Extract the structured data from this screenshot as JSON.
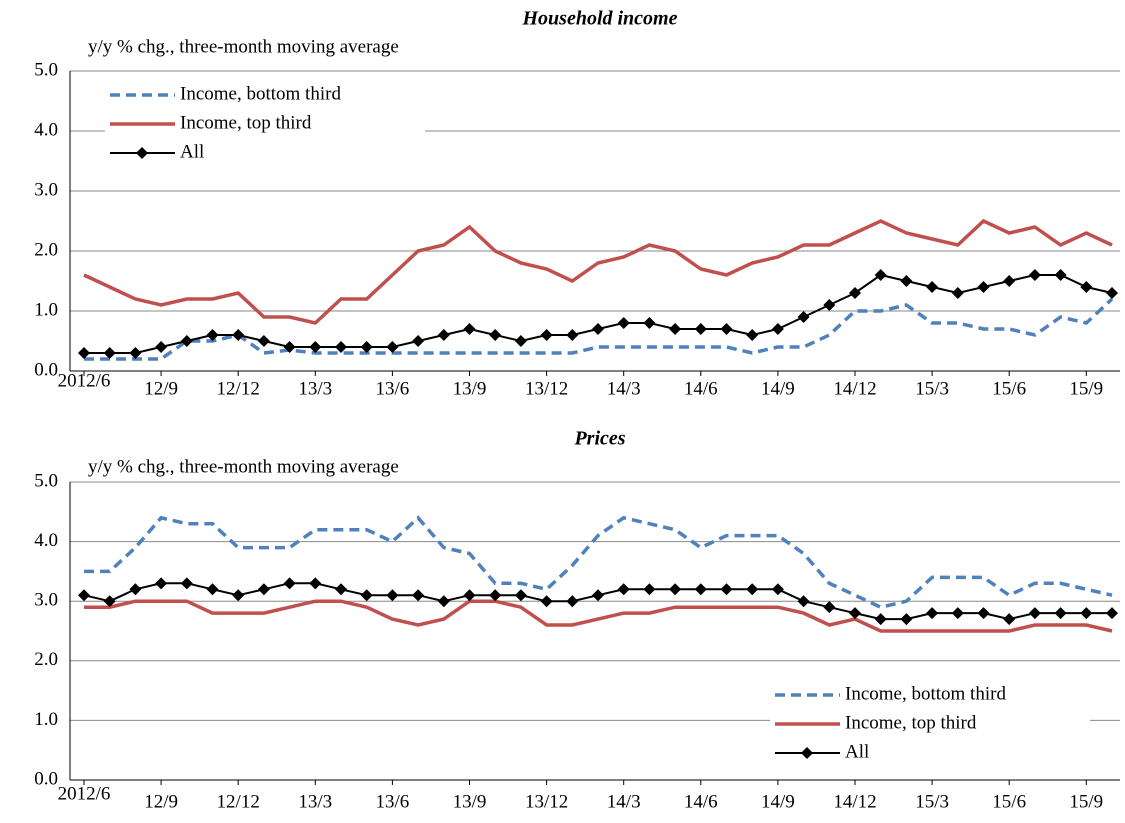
{
  "chart_data": [
    {
      "type": "line",
      "title": "Household income",
      "subtitle": "y/y % chg., three-month moving average",
      "categories": [
        "2012/6",
        null,
        null,
        "12/9",
        null,
        null,
        "12/12",
        null,
        null,
        "13/3",
        null,
        null,
        "13/6",
        null,
        null,
        "13/9",
        null,
        null,
        "13/12",
        null,
        null,
        "14/3",
        null,
        null,
        "14/6",
        null,
        null,
        "14/9",
        null,
        null,
        "14/12",
        null,
        null,
        "15/3",
        null,
        null,
        "15/6",
        null,
        null,
        "15/9",
        null
      ],
      "series": [
        {
          "name": "Income, bottom third",
          "color": "#4f81bd",
          "dash": true,
          "values": [
            0.2,
            0.2,
            0.2,
            0.2,
            0.5,
            0.5,
            0.6,
            0.3,
            0.35,
            0.3,
            0.3,
            0.3,
            0.3,
            0.3,
            0.3,
            0.3,
            0.3,
            0.3,
            0.3,
            0.3,
            0.4,
            0.4,
            0.4,
            0.4,
            0.4,
            0.4,
            0.3,
            0.4,
            0.4,
            0.6,
            1.0,
            1.0,
            1.1,
            0.8,
            0.8,
            0.7,
            0.7,
            0.6,
            0.9,
            0.8,
            1.2
          ]
        },
        {
          "name": "Income, top third",
          "color": "#c0504d",
          "values": [
            1.6,
            1.4,
            1.2,
            1.1,
            1.2,
            1.2,
            1.3,
            0.9,
            0.9,
            0.8,
            1.2,
            1.2,
            1.6,
            2.0,
            2.1,
            2.4,
            2.0,
            1.8,
            1.7,
            1.5,
            1.8,
            1.9,
            2.1,
            2.0,
            1.7,
            1.6,
            1.8,
            1.9,
            2.1,
            2.1,
            2.3,
            2.5,
            2.3,
            2.2,
            2.1,
            2.5,
            2.3,
            2.4,
            2.1,
            2.3,
            2.1
          ]
        },
        {
          "name": "All",
          "color": "#000000",
          "marker": "diamond",
          "values": [
            0.3,
            0.3,
            0.3,
            0.4,
            0.5,
            0.6,
            0.6,
            0.5,
            0.4,
            0.4,
            0.4,
            0.4,
            0.4,
            0.5,
            0.6,
            0.7,
            0.6,
            0.5,
            0.6,
            0.6,
            0.7,
            0.8,
            0.8,
            0.7,
            0.7,
            0.7,
            0.6,
            0.7,
            0.9,
            1.1,
            1.3,
            1.6,
            1.5,
            1.4,
            1.3,
            1.4,
            1.5,
            1.6,
            1.6,
            1.4,
            1.3
          ]
        }
      ],
      "ylim": [
        0,
        5
      ],
      "yticks": [
        {
          "value": 0,
          "label": "0.0"
        },
        {
          "value": 1,
          "label": "1.0"
        },
        {
          "value": 2,
          "label": "2.0"
        },
        {
          "value": 3,
          "label": "3.0"
        },
        {
          "value": 4,
          "label": "4.0"
        },
        {
          "value": 5,
          "label": "5.0"
        }
      ],
      "grid": true,
      "legend": "upper left"
    },
    {
      "type": "line",
      "title": "Prices",
      "subtitle": "y/y % chg., three-month moving average",
      "categories": [
        "2012/6",
        null,
        null,
        "12/9",
        null,
        null,
        "12/12",
        null,
        null,
        "13/3",
        null,
        null,
        "13/6",
        null,
        null,
        "13/9",
        null,
        null,
        "13/12",
        null,
        null,
        "14/3",
        null,
        null,
        "14/6",
        null,
        null,
        "14/9",
        null,
        null,
        "14/12",
        null,
        null,
        "15/3",
        null,
        null,
        "15/6",
        null,
        null,
        "15/9",
        null
      ],
      "series": [
        {
          "name": "Income, bottom third",
          "color": "#4f81bd",
          "dash": true,
          "values": [
            3.5,
            3.5,
            3.9,
            4.4,
            4.3,
            4.3,
            3.9,
            3.9,
            3.9,
            4.2,
            4.2,
            4.2,
            4.0,
            4.4,
            3.9,
            3.8,
            3.3,
            3.3,
            3.2,
            3.6,
            4.1,
            4.4,
            4.3,
            4.2,
            3.9,
            4.1,
            4.1,
            4.1,
            3.8,
            3.3,
            3.1,
            2.9,
            3.0,
            3.4,
            3.4,
            3.4,
            3.1,
            3.3,
            3.3,
            3.2,
            3.1
          ]
        },
        {
          "name": "Income, top third",
          "color": "#c0504d",
          "values": [
            2.9,
            2.9,
            3.0,
            3.0,
            3.0,
            2.8,
            2.8,
            2.8,
            2.9,
            3.0,
            3.0,
            2.9,
            2.7,
            2.6,
            2.7,
            3.0,
            3.0,
            2.9,
            2.6,
            2.6,
            2.7,
            2.8,
            2.8,
            2.9,
            2.9,
            2.9,
            2.9,
            2.9,
            2.8,
            2.6,
            2.7,
            2.5,
            2.5,
            2.5,
            2.5,
            2.5,
            2.5,
            2.6,
            2.6,
            2.6,
            2.5
          ]
        },
        {
          "name": "All",
          "color": "#000000",
          "marker": "diamond",
          "values": [
            3.1,
            3.0,
            3.2,
            3.3,
            3.3,
            3.2,
            3.1,
            3.2,
            3.3,
            3.3,
            3.2,
            3.1,
            3.1,
            3.1,
            3.0,
            3.1,
            3.1,
            3.1,
            3.0,
            3.0,
            3.1,
            3.2,
            3.2,
            3.2,
            3.2,
            3.2,
            3.2,
            3.2,
            3.0,
            2.9,
            2.8,
            2.7,
            2.7,
            2.8,
            2.8,
            2.8,
            2.7,
            2.8,
            2.8,
            2.8,
            2.8
          ]
        }
      ],
      "ylim": [
        0,
        5
      ],
      "yticks": [
        {
          "value": 0,
          "label": "0.0"
        },
        {
          "value": 1,
          "label": "1.0"
        },
        {
          "value": 2,
          "label": "2.0"
        },
        {
          "value": 3,
          "label": "3.0"
        },
        {
          "value": 4,
          "label": "4.0"
        },
        {
          "value": 5,
          "label": "5.0"
        }
      ],
      "grid": true,
      "legend": "lower right"
    }
  ]
}
